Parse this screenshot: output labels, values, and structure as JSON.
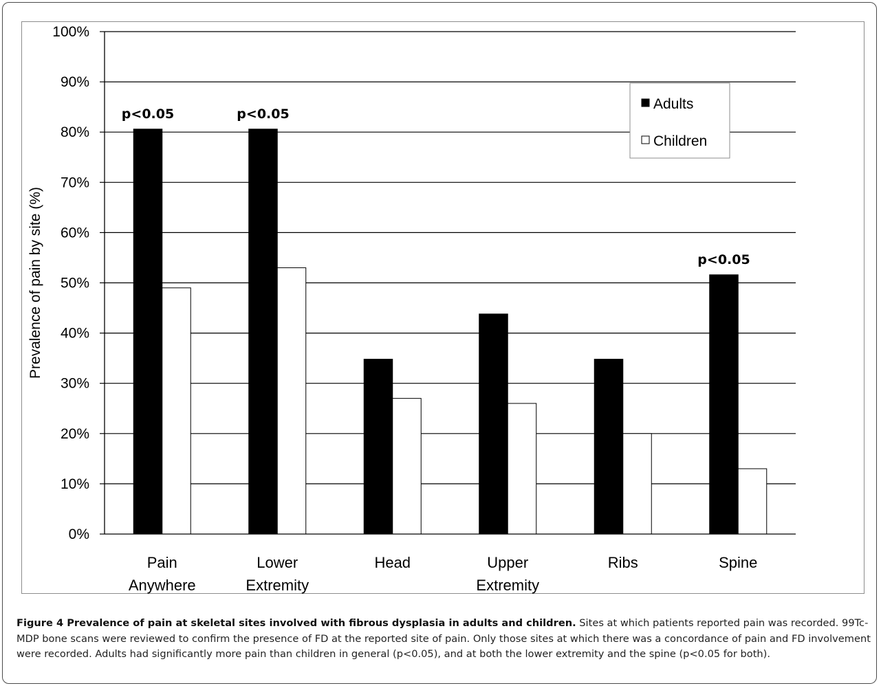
{
  "chart_data": {
    "type": "bar",
    "ylabel": "Prevalence of pain by site (%)",
    "xlabel": "",
    "ylim": [
      0,
      100
    ],
    "yticks": [
      "0%",
      "10%",
      "20%",
      "30%",
      "40%",
      "50%",
      "60%",
      "70%",
      "80%",
      "90%",
      "100%"
    ],
    "categories": [
      [
        "Pain",
        "Anywhere"
      ],
      [
        "Lower",
        "Extremity"
      ],
      [
        "Head"
      ],
      [
        "Upper",
        "Extremity"
      ],
      [
        "Ribs"
      ],
      [
        "Spine"
      ]
    ],
    "series": [
      {
        "name": "Adults",
        "values": [
          80.6,
          80.6,
          34.8,
          43.8,
          34.8,
          51.6
        ],
        "color": "#000000"
      },
      {
        "name": "Children",
        "values": [
          49.0,
          53.0,
          27.0,
          26.0,
          20.0,
          13.0
        ],
        "color": "#ffffff"
      }
    ],
    "annotations": [
      {
        "category_index": 0,
        "series_index": 0,
        "text": "p<0.05"
      },
      {
        "category_index": 1,
        "series_index": 0,
        "text": "p<0.05"
      },
      {
        "category_index": 5,
        "series_index": 0,
        "text": "p<0.05"
      }
    ],
    "grid": true,
    "legend_position": "top-right"
  },
  "caption": {
    "title": "Figure 4 Prevalence of pain at skeletal sites involved with fibrous dysplasia in adults and children.",
    "text": " Sites at which patients reported pain was recorded. 99Tc-MDP bone scans were reviewed to confirm the presence of FD at the reported site of pain. Only those sites at which there was a concordance of pain and FD involvement were recorded. Adults had significantly more pain than children in general (p<0.05), and at both the lower extremity and the spine (p<0.05 for both)."
  }
}
